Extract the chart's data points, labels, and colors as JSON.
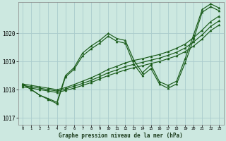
{
  "title": "Graphe pression niveau de la mer (hPa)",
  "bg_color": "#cce8e0",
  "grid_color": "#aacccc",
  "line_color": "#1a5c1a",
  "xlim_min": -0.5,
  "xlim_max": 23.5,
  "ylim_min": 1016.75,
  "ylim_max": 1021.1,
  "yticks": [
    1017,
    1018,
    1019,
    1020
  ],
  "xticks": [
    0,
    1,
    2,
    3,
    4,
    5,
    6,
    7,
    8,
    9,
    10,
    11,
    12,
    13,
    14,
    15,
    16,
    17,
    18,
    19,
    20,
    21,
    22,
    23
  ],
  "straight1": [
    1018.1,
    1018.05,
    1018.0,
    1017.95,
    1017.9,
    1017.97,
    1018.05,
    1018.15,
    1018.25,
    1018.38,
    1018.5,
    1018.6,
    1018.7,
    1018.78,
    1018.85,
    1018.93,
    1019.0,
    1019.1,
    1019.2,
    1019.35,
    1019.55,
    1019.8,
    1020.1,
    1020.3
  ],
  "straight2": [
    1018.15,
    1018.1,
    1018.05,
    1018.0,
    1017.95,
    1018.02,
    1018.12,
    1018.22,
    1018.33,
    1018.46,
    1018.6,
    1018.7,
    1018.82,
    1018.9,
    1018.97,
    1019.05,
    1019.12,
    1019.22,
    1019.33,
    1019.48,
    1019.7,
    1019.95,
    1020.25,
    1020.45
  ],
  "straight3": [
    1018.2,
    1018.15,
    1018.1,
    1018.05,
    1018.0,
    1018.07,
    1018.18,
    1018.3,
    1018.42,
    1018.56,
    1018.72,
    1018.83,
    1018.95,
    1019.04,
    1019.1,
    1019.18,
    1019.25,
    1019.35,
    1019.47,
    1019.62,
    1019.85,
    1020.12,
    1020.42,
    1020.62
  ],
  "zigzag1": [
    1018.2,
    1018.0,
    1017.8,
    1017.68,
    1017.55,
    1018.5,
    1018.78,
    1019.3,
    1019.55,
    1019.75,
    1020.0,
    1019.82,
    1019.75,
    1019.05,
    1018.6,
    1018.88,
    1018.28,
    1018.15,
    1018.3,
    1019.1,
    1019.95,
    1020.85,
    1021.05,
    1020.9
  ],
  "zigzag2": [
    1018.2,
    1018.0,
    1017.8,
    1017.65,
    1017.5,
    1018.45,
    1018.72,
    1019.2,
    1019.45,
    1019.65,
    1019.9,
    1019.72,
    1019.65,
    1018.9,
    1018.5,
    1018.75,
    1018.2,
    1018.05,
    1018.2,
    1018.95,
    1019.8,
    1020.75,
    1020.95,
    1020.8
  ]
}
